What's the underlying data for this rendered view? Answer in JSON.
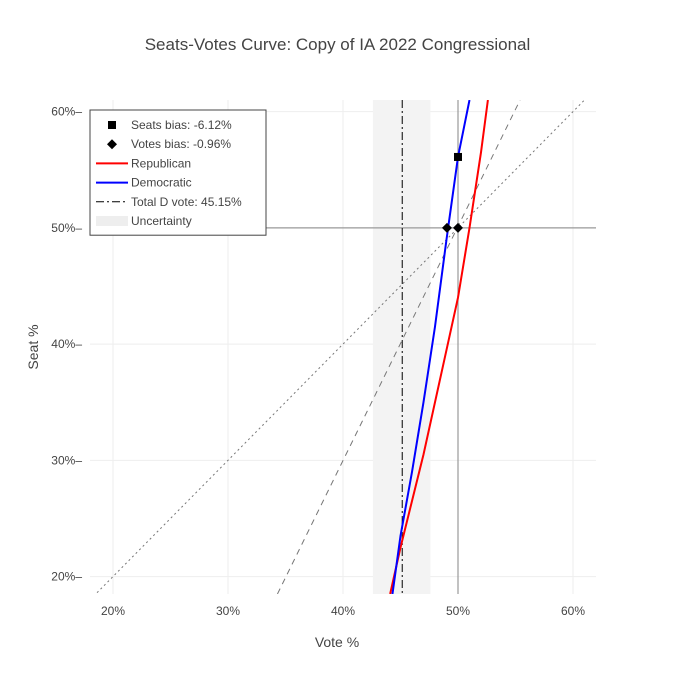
{
  "chart_data": {
    "type": "line",
    "title": "Seats-Votes Curve: Copy of IA 2022 Congressional",
    "xlabel": "Vote %",
    "ylabel": "Seat %",
    "xlim": [
      18,
      62
    ],
    "ylim": [
      18.5,
      61
    ],
    "x_ticks": [
      20,
      30,
      40,
      50,
      60
    ],
    "x_tick_labels": [
      "20%",
      "30%",
      "40%",
      "50%",
      "60%"
    ],
    "y_ticks": [
      20,
      30,
      40,
      50,
      60
    ],
    "y_tick_labels": [
      "20%",
      "30%",
      "40%",
      "50%",
      "60%"
    ],
    "grid": true,
    "legend_position": "top-left",
    "legend": [
      {
        "key": "seats_bias",
        "label": "Seats bias: -6.12%",
        "symbol": "square"
      },
      {
        "key": "votes_bias",
        "label": "Votes bias: -0.96%",
        "symbol": "diamond"
      },
      {
        "key": "republican",
        "label": "Republican",
        "symbol": "line",
        "color": "#ff0000"
      },
      {
        "key": "democratic",
        "label": "Democratic",
        "symbol": "line",
        "color": "#0000ff"
      },
      {
        "key": "total_d_vote",
        "label": "Total D vote: 45.15%",
        "symbol": "dashdot"
      },
      {
        "key": "uncertainty",
        "label": "Uncertainty",
        "symbol": "band",
        "color": "#eeeeee"
      }
    ],
    "uncertainty_band": [
      42.6,
      47.6
    ],
    "total_d_vote": 45.15,
    "series": [
      {
        "name": "Republican",
        "color": "#ff0000",
        "x": [
          44.1,
          45.0,
          46.0,
          47.0,
          48.0,
          49.0,
          50.0,
          51.0,
          52.0,
          52.6
        ],
        "y": [
          18.5,
          22.5,
          26.5,
          30.5,
          35.0,
          39.5,
          44.0,
          50.0,
          56.5,
          61.0
        ]
      },
      {
        "name": "Democratic",
        "color": "#0000ff",
        "x": [
          44.3,
          45.0,
          46.0,
          47.0,
          48.0,
          49.0,
          50.0,
          51.0
        ],
        "y": [
          18.5,
          23.5,
          29.0,
          35.0,
          41.5,
          49.0,
          56.1,
          61.0
        ]
      }
    ],
    "reference_lines": [
      {
        "name": "dotted_diagonal",
        "x": [
          18,
          62
        ],
        "y": [
          18,
          62
        ],
        "dash": "dot"
      },
      {
        "name": "dashed_line",
        "x": [
          34.3,
          55.4
        ],
        "y": [
          18.5,
          61
        ],
        "dash": "dash"
      },
      {
        "name": "vline_50",
        "x": [
          50,
          50
        ],
        "y": [
          18.5,
          61
        ],
        "dash": "solid"
      },
      {
        "name": "hline_50",
        "x": [
          18,
          62
        ],
        "y": [
          50,
          50
        ],
        "dash": "solid"
      }
    ],
    "markers": [
      {
        "name": "seats-bias-marker",
        "symbol": "square",
        "x": 50.0,
        "y": 56.1
      },
      {
        "name": "votes-bias-marker-democratic",
        "symbol": "diamond",
        "x": 49.04,
        "y": 50.0
      },
      {
        "name": "votes-bias-marker-republican",
        "symbol": "diamond",
        "x": 50.0,
        "y": 50.0
      }
    ]
  }
}
